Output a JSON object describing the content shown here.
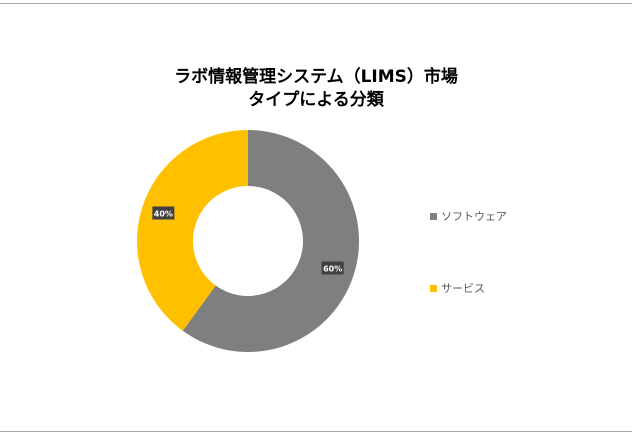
{
  "chart_data": {
    "type": "pie",
    "title_lines": [
      "ラボ情報管理システム（LIMS）市場",
      "タイプによる分類"
    ],
    "categories": [
      "ソフトウェア",
      "サービス"
    ],
    "values": [
      60,
      40
    ],
    "data_labels": [
      "60%",
      "40%"
    ],
    "colors": [
      "#7f7f7f",
      "#ffc000"
    ],
    "legend_position": "right"
  }
}
